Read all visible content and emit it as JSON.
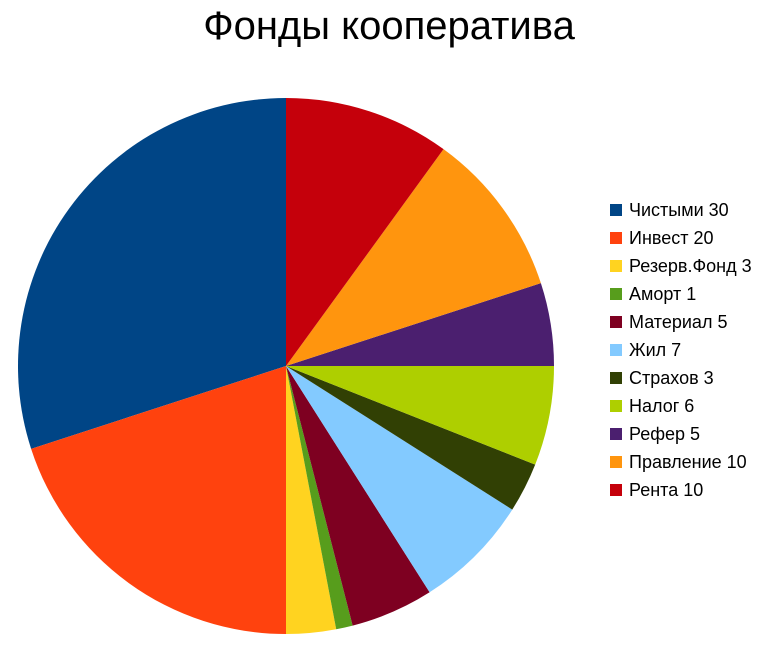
{
  "chart_data": {
    "type": "pie",
    "title": "Фонды кооператива",
    "legend": "right",
    "slices": [
      {
        "label": "Чистыми 30",
        "value": 30,
        "color": "#004586"
      },
      {
        "label": "Инвест 20",
        "value": 20,
        "color": "#ff420e"
      },
      {
        "label": "Резерв.Фонд 3",
        "value": 3,
        "color": "#ffd320"
      },
      {
        "label": "Аморт 1",
        "value": 1,
        "color": "#579d1c"
      },
      {
        "label": "Материал 5",
        "value": 5,
        "color": "#7e0021"
      },
      {
        "label": "Жил 7",
        "value": 7,
        "color": "#83caff"
      },
      {
        "label": "Страхов 3",
        "value": 3,
        "color": "#314004"
      },
      {
        "label": "Налог 6",
        "value": 6,
        "color": "#aecf00"
      },
      {
        "label": "Рефер 5",
        "value": 5,
        "color": "#4b1f6f"
      },
      {
        "label": "Правление 10",
        "value": 10,
        "color": "#ff950e"
      },
      {
        "label": "Рента 10",
        "value": 10,
        "color": "#c5000b"
      }
    ]
  }
}
